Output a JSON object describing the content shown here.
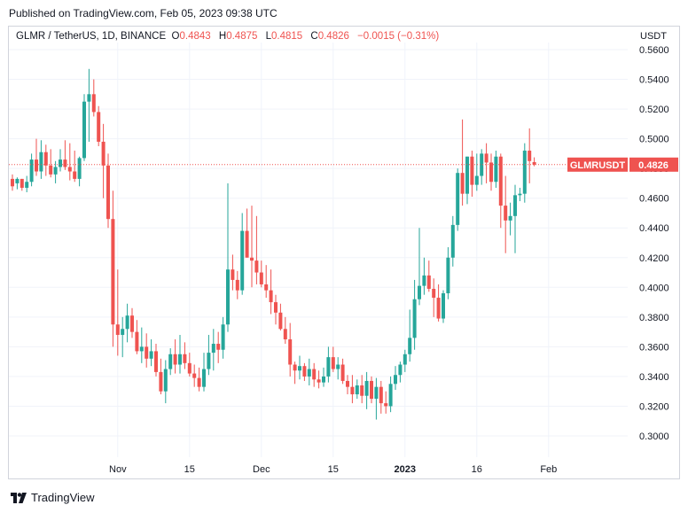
{
  "header": {
    "published": "Published on TradingView.com, Feb 05, 2023 09:38 UTC"
  },
  "legend": {
    "symbol": "GLMR / TetherUS, 1D, BINANCE",
    "open_label": "O",
    "open": "0.4843",
    "high_label": "H",
    "high": "0.4875",
    "low_label": "L",
    "low": "0.4815",
    "close_label": "C",
    "close": "0.4826",
    "change": "−0.0015 (−0.31%)"
  },
  "currency": "USDT",
  "price_tag": {
    "symbol": "GLMRUSDT",
    "price": "0.4826",
    "value": 0.4826
  },
  "footer": {
    "brand": "TradingView"
  },
  "colors": {
    "up": "#26a69a",
    "down": "#ef5350",
    "grid": "#f0f3fa",
    "axis_text": "#131722"
  },
  "chart_data": {
    "type": "candlestick",
    "x_ticks": [
      "Nov",
      "15",
      "Dec",
      "15",
      "2023",
      "16",
      "Feb"
    ],
    "x_tick_index": [
      22,
      37,
      52,
      67,
      82,
      97,
      112
    ],
    "y_ticks": [
      "0.5600",
      "0.5400",
      "0.5200",
      "0.5000",
      "0.4800",
      "0.4600",
      "0.4400",
      "0.4200",
      "0.4000",
      "0.3800",
      "0.3600",
      "0.3400",
      "0.3200",
      "0.3000"
    ],
    "ylim": [
      0.292,
      0.565
    ],
    "grid": true,
    "last_price_line": 0.4826,
    "candles": [
      [
        0.473,
        0.476,
        0.465,
        0.468
      ],
      [
        0.47,
        0.474,
        0.466,
        0.473
      ],
      [
        0.473,
        0.473,
        0.465,
        0.467
      ],
      [
        0.467,
        0.475,
        0.464,
        0.471
      ],
      [
        0.471,
        0.49,
        0.468,
        0.486
      ],
      [
        0.486,
        0.5,
        0.475,
        0.478
      ],
      [
        0.478,
        0.499,
        0.473,
        0.491
      ],
      [
        0.491,
        0.496,
        0.475,
        0.482
      ],
      [
        0.482,
        0.493,
        0.474,
        0.476
      ],
      [
        0.476,
        0.485,
        0.47,
        0.481
      ],
      [
        0.481,
        0.493,
        0.478,
        0.486
      ],
      [
        0.486,
        0.499,
        0.479,
        0.481
      ],
      [
        0.481,
        0.497,
        0.472,
        0.478
      ],
      [
        0.478,
        0.492,
        0.471,
        0.473
      ],
      [
        0.473,
        0.488,
        0.468,
        0.487
      ],
      [
        0.487,
        0.53,
        0.485,
        0.525
      ],
      [
        0.525,
        0.547,
        0.498,
        0.53
      ],
      [
        0.53,
        0.54,
        0.515,
        0.518
      ],
      [
        0.518,
        0.522,
        0.495,
        0.498
      ],
      [
        0.498,
        0.51,
        0.46,
        0.482
      ],
      [
        0.482,
        0.49,
        0.44,
        0.446
      ],
      [
        0.446,
        0.465,
        0.36,
        0.375
      ],
      [
        0.375,
        0.412,
        0.354,
        0.368
      ],
      [
        0.368,
        0.38,
        0.353,
        0.372
      ],
      [
        0.372,
        0.389,
        0.363,
        0.381
      ],
      [
        0.381,
        0.386,
        0.366,
        0.37
      ],
      [
        0.37,
        0.378,
        0.355,
        0.357
      ],
      [
        0.357,
        0.373,
        0.349,
        0.36
      ],
      [
        0.36,
        0.369,
        0.346,
        0.352
      ],
      [
        0.352,
        0.365,
        0.347,
        0.357
      ],
      [
        0.357,
        0.362,
        0.34,
        0.343
      ],
      [
        0.343,
        0.352,
        0.328,
        0.33
      ],
      [
        0.33,
        0.351,
        0.322,
        0.345
      ],
      [
        0.345,
        0.359,
        0.341,
        0.355
      ],
      [
        0.355,
        0.365,
        0.342,
        0.348
      ],
      [
        0.348,
        0.368,
        0.342,
        0.355
      ],
      [
        0.355,
        0.363,
        0.345,
        0.349
      ],
      [
        0.349,
        0.356,
        0.34,
        0.342
      ],
      [
        0.342,
        0.348,
        0.333,
        0.339
      ],
      [
        0.339,
        0.346,
        0.33,
        0.333
      ],
      [
        0.333,
        0.356,
        0.33,
        0.345
      ],
      [
        0.345,
        0.368,
        0.341,
        0.356
      ],
      [
        0.356,
        0.372,
        0.344,
        0.362
      ],
      [
        0.362,
        0.37,
        0.349,
        0.358
      ],
      [
        0.358,
        0.38,
        0.352,
        0.375
      ],
      [
        0.375,
        0.47,
        0.37,
        0.412
      ],
      [
        0.412,
        0.422,
        0.398,
        0.405
      ],
      [
        0.405,
        0.411,
        0.392,
        0.398
      ],
      [
        0.398,
        0.45,
        0.395,
        0.438
      ],
      [
        0.438,
        0.453,
        0.42,
        0.42
      ],
      [
        0.42,
        0.455,
        0.4,
        0.418
      ],
      [
        0.418,
        0.448,
        0.402,
        0.41
      ],
      [
        0.41,
        0.418,
        0.4,
        0.402
      ],
      [
        0.402,
        0.415,
        0.393,
        0.398
      ],
      [
        0.398,
        0.412,
        0.382,
        0.39
      ],
      [
        0.39,
        0.395,
        0.375,
        0.383
      ],
      [
        0.383,
        0.389,
        0.371,
        0.372
      ],
      [
        0.372,
        0.38,
        0.362,
        0.365
      ],
      [
        0.365,
        0.376,
        0.34,
        0.348
      ],
      [
        0.348,
        0.35,
        0.335,
        0.344
      ],
      [
        0.344,
        0.354,
        0.338,
        0.347
      ],
      [
        0.347,
        0.349,
        0.337,
        0.34
      ],
      [
        0.34,
        0.352,
        0.334,
        0.345
      ],
      [
        0.345,
        0.349,
        0.333,
        0.338
      ],
      [
        0.338,
        0.344,
        0.332,
        0.336
      ],
      [
        0.336,
        0.346,
        0.333,
        0.34
      ],
      [
        0.34,
        0.36,
        0.336,
        0.353
      ],
      [
        0.353,
        0.36,
        0.343,
        0.345
      ],
      [
        0.345,
        0.353,
        0.338,
        0.348
      ],
      [
        0.348,
        0.352,
        0.335,
        0.337
      ],
      [
        0.337,
        0.341,
        0.328,
        0.333
      ],
      [
        0.333,
        0.341,
        0.322,
        0.328
      ],
      [
        0.328,
        0.338,
        0.325,
        0.334
      ],
      [
        0.334,
        0.341,
        0.322,
        0.327
      ],
      [
        0.327,
        0.343,
        0.318,
        0.337
      ],
      [
        0.337,
        0.34,
        0.322,
        0.325
      ],
      [
        0.325,
        0.339,
        0.311,
        0.333
      ],
      [
        0.333,
        0.337,
        0.315,
        0.322
      ],
      [
        0.322,
        0.33,
        0.315,
        0.32
      ],
      [
        0.32,
        0.34,
        0.316,
        0.335
      ],
      [
        0.335,
        0.347,
        0.331,
        0.341
      ],
      [
        0.341,
        0.35,
        0.336,
        0.348
      ],
      [
        0.348,
        0.358,
        0.343,
        0.355
      ],
      [
        0.355,
        0.385,
        0.35,
        0.366
      ],
      [
        0.366,
        0.405,
        0.358,
        0.392
      ],
      [
        0.392,
        0.44,
        0.388,
        0.401
      ],
      [
        0.401,
        0.42,
        0.395,
        0.408
      ],
      [
        0.408,
        0.418,
        0.397,
        0.399
      ],
      [
        0.399,
        0.406,
        0.38,
        0.393
      ],
      [
        0.393,
        0.402,
        0.377,
        0.379
      ],
      [
        0.379,
        0.398,
        0.376,
        0.396
      ],
      [
        0.396,
        0.427,
        0.392,
        0.42
      ],
      [
        0.42,
        0.448,
        0.414,
        0.442
      ],
      [
        0.442,
        0.48,
        0.438,
        0.477
      ],
      [
        0.477,
        0.513,
        0.455,
        0.463
      ],
      [
        0.463,
        0.488,
        0.456,
        0.488
      ],
      [
        0.488,
        0.492,
        0.461,
        0.469
      ],
      [
        0.469,
        0.49,
        0.465,
        0.475
      ],
      [
        0.475,
        0.493,
        0.469,
        0.49
      ],
      [
        0.49,
        0.497,
        0.47,
        0.484
      ],
      [
        0.484,
        0.49,
        0.465,
        0.471
      ],
      [
        0.471,
        0.492,
        0.467,
        0.488
      ],
      [
        0.488,
        0.49,
        0.44,
        0.455
      ],
      [
        0.455,
        0.475,
        0.423,
        0.445
      ],
      [
        0.445,
        0.457,
        0.435,
        0.448
      ],
      [
        0.448,
        0.469,
        0.423,
        0.462
      ],
      [
        0.462,
        0.467,
        0.458,
        0.463
      ],
      [
        0.463,
        0.497,
        0.457,
        0.492
      ],
      [
        0.492,
        0.507,
        0.47,
        0.485
      ],
      [
        0.4843,
        0.4875,
        0.4815,
        0.4826
      ]
    ]
  }
}
